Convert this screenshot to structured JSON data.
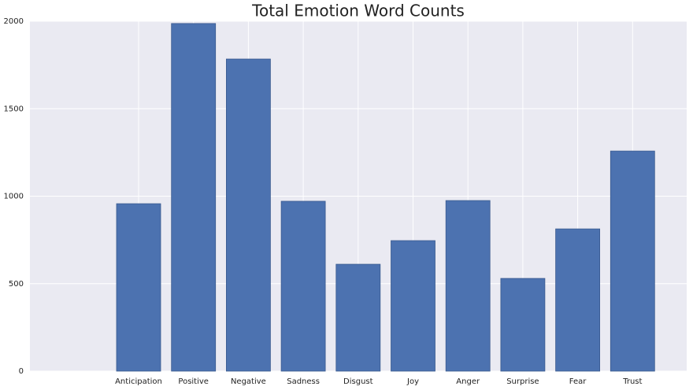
{
  "chart_data": {
    "type": "bar",
    "title": "Total Emotion Word Counts",
    "categories": [
      "Anticipation",
      "Positive",
      "Negative",
      "Sadness",
      "Disgust",
      "Joy",
      "Anger",
      "Surprise",
      "Fear",
      "Trust"
    ],
    "values": [
      957,
      1987,
      1784,
      971,
      611,
      746,
      975,
      530,
      813,
      1258
    ],
    "color": "#4c72b0",
    "ylim": [
      0,
      2000
    ],
    "yticks": [
      0,
      500,
      1000,
      1500,
      2000
    ],
    "grid": true
  }
}
